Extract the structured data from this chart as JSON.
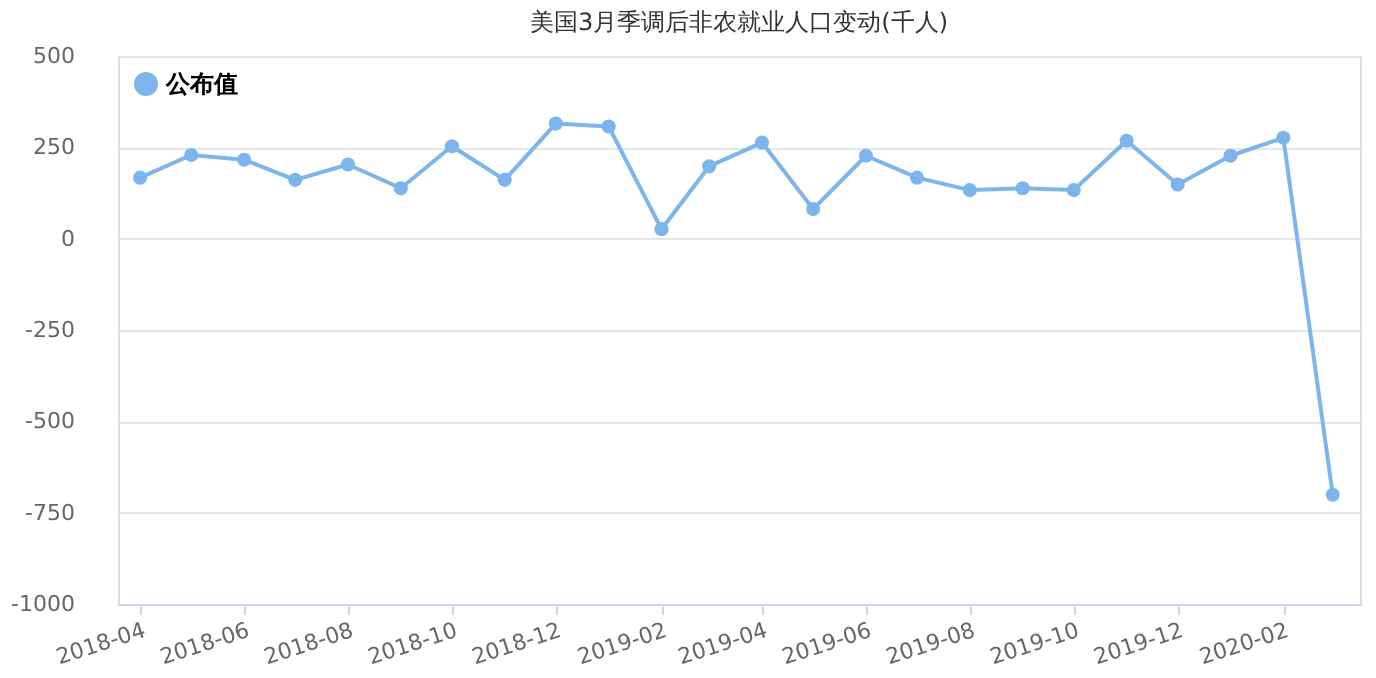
{
  "chart_data": {
    "type": "line",
    "title": "美国3月季调后非农就业人口变动(千人)",
    "x": [
      "2018-04",
      "2018-05",
      "2018-06",
      "2018-07",
      "2018-08",
      "2018-09",
      "2018-10",
      "2018-11",
      "2018-12",
      "2019-01",
      "2019-02",
      "2019-03",
      "2019-04",
      "2019-05",
      "2019-06",
      "2019-07",
      "2019-08",
      "2019-09",
      "2019-10",
      "2019-11",
      "2019-12",
      "2020-01",
      "2020-02",
      "2020-03"
    ],
    "series": [
      {
        "name": "公布值",
        "color": "#7cb5ec",
        "values": [
          167,
          229,
          216,
          161,
          203,
          138,
          253,
          161,
          315,
          307,
          26,
          198,
          263,
          81,
          227,
          167,
          133,
          138,
          133,
          268,
          148,
          227,
          276,
          -701
        ]
      }
    ],
    "xlim": [
      "2018-03-19",
      "2020-03-17"
    ],
    "xticks": [
      "2018-04",
      "2018-06",
      "2018-08",
      "2018-10",
      "2018-12",
      "2019-02",
      "2019-04",
      "2019-06",
      "2019-08",
      "2019-10",
      "2019-12",
      "2020-02"
    ],
    "ylim": [
      -1000,
      500
    ],
    "yticks": [
      -1000,
      -750,
      -500,
      -250,
      0,
      250,
      500
    ],
    "grid": "y",
    "legend": "top left",
    "marker": "circle",
    "line_style": "solid"
  }
}
